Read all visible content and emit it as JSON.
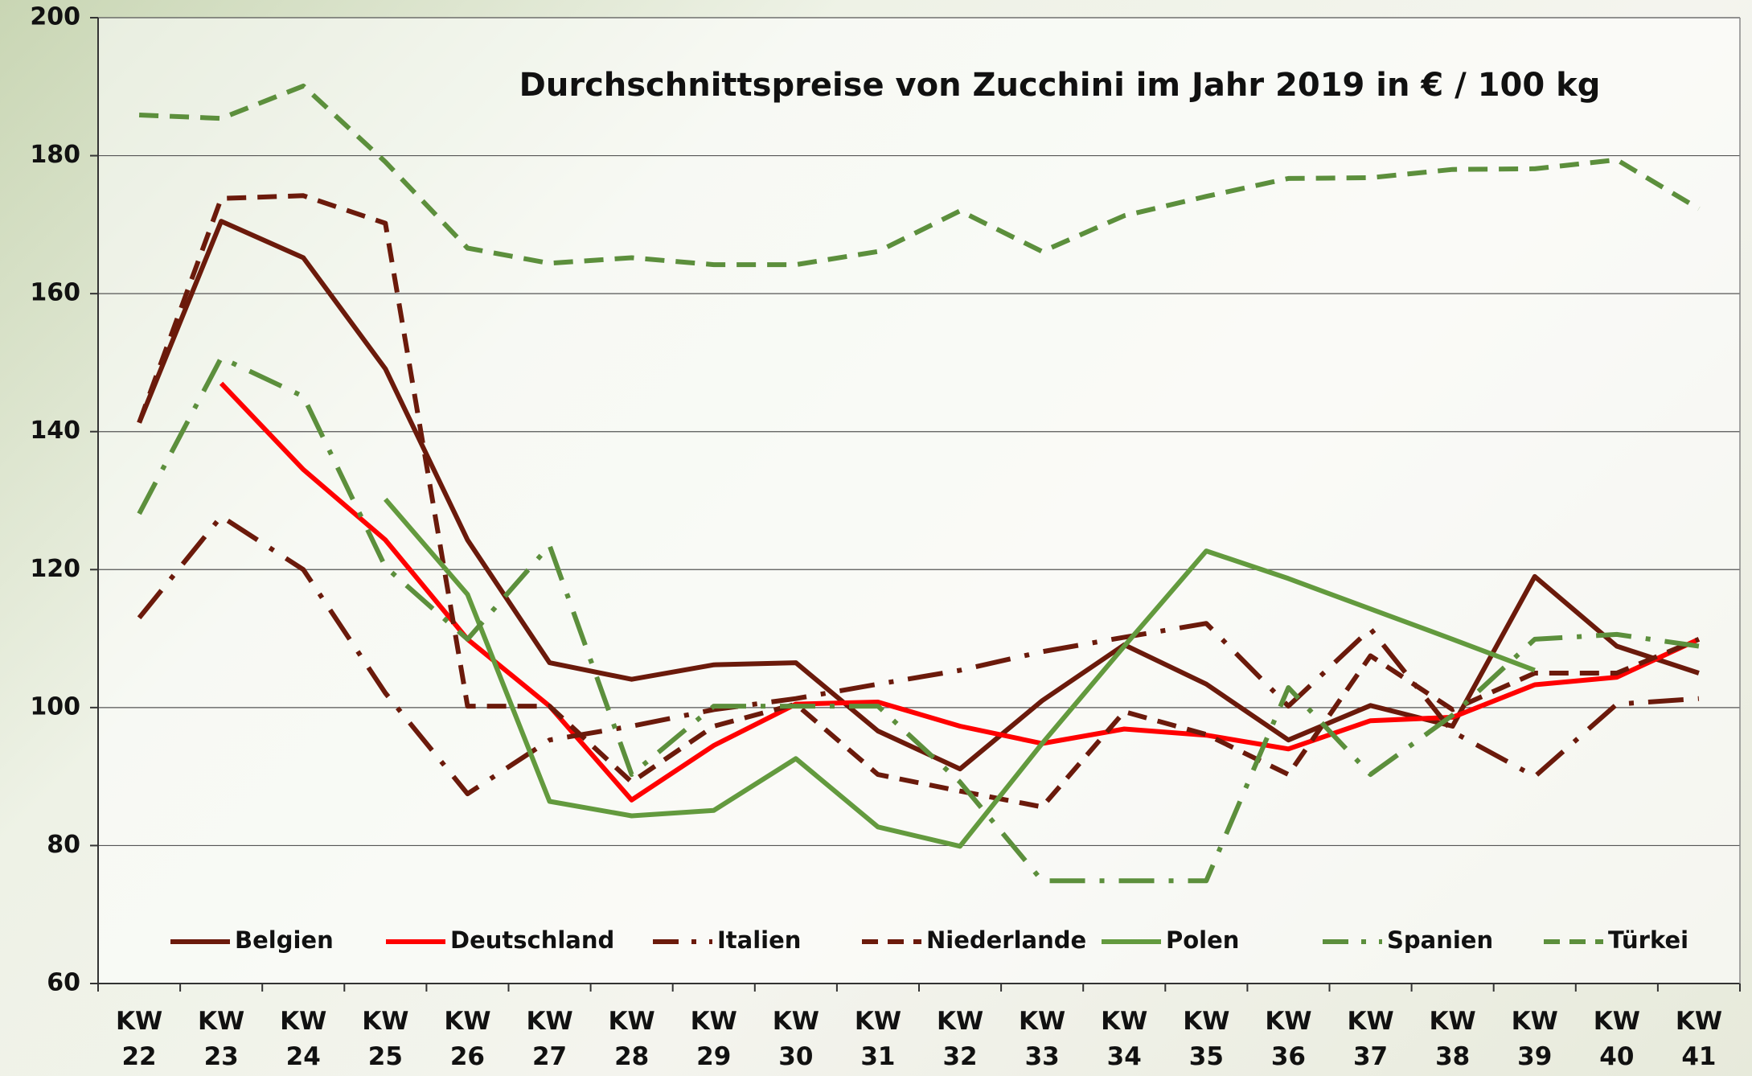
{
  "chart_data": {
    "type": "line",
    "title": "Durchschnittspreise von Zucchini im Jahr 2019 in € / 100 kg",
    "categories": [
      "KW 22",
      "KW 23",
      "KW 24",
      "KW 25",
      "KW 26",
      "KW 27",
      "KW 28",
      "KW 29",
      "KW 30",
      "KW 31",
      "KW 32",
      "KW 33",
      "KW 34",
      "KW 35",
      "KW 36",
      "KW 37",
      "KW 38",
      "KW 39",
      "KW 40",
      "KW 41"
    ],
    "ylim": [
      60,
      200
    ],
    "yticks": [
      60,
      80,
      100,
      120,
      140,
      160,
      180,
      200
    ],
    "grid": true,
    "series": [
      {
        "name": "Belgien",
        "color": "#6b1a0b",
        "dash": "solid",
        "values": [
          141.3,
          170.5,
          165.2,
          149.1,
          124.3,
          106.5,
          104.1,
          106.2,
          106.5,
          96.6,
          91.1,
          101,
          109.1,
          103.4,
          95.3,
          100.3,
          97.3,
          119,
          108.9,
          105
        ]
      },
      {
        "name": "Deutschland",
        "color": "#ff0000",
        "dash": "solid",
        "values": [
          null,
          147,
          134.5,
          124.3,
          109.9,
          100.2,
          86.6,
          94.5,
          100.5,
          100.8,
          97.3,
          94.8,
          96.9,
          96,
          94,
          98.1,
          98.6,
          103.3,
          104.4,
          109.9
        ]
      },
      {
        "name": "Italien",
        "color": "#6b1a0b",
        "dash": "dashdot",
        "values": [
          113,
          127.7,
          120,
          102.1,
          87.5,
          95.3,
          97.3,
          99.7,
          101.3,
          103.4,
          105.4,
          108.1,
          110.2,
          112.2,
          100.2,
          111.4,
          96.5,
          90,
          100.5,
          101.3
        ]
      },
      {
        "name": "Niederlande",
        "color": "#6b1a0b",
        "dash": "dash",
        "values": [
          141.3,
          173.8,
          174.2,
          170.2,
          100.2,
          100.2,
          89.2,
          97.3,
          100.5,
          90.3,
          87.9,
          85.6,
          99.4,
          96.1,
          90.3,
          107.5,
          99.7,
          105,
          105,
          109.9
        ]
      },
      {
        "name": "Polen",
        "color": "#639a3e",
        "dash": "solid",
        "values": [
          null,
          null,
          null,
          130.2,
          116.4,
          86.4,
          84.3,
          85.1,
          92.6,
          82.7,
          79.9,
          94.8,
          108.9,
          122.7,
          118.7,
          114.3,
          109.9,
          105.4,
          null,
          null
        ]
      },
      {
        "name": "Spanien",
        "color": "#5c8f3c",
        "dash": "dashdot",
        "values": [
          128.1,
          150.7,
          145.1,
          120.4,
          109.9,
          123.5,
          90.3,
          100.2,
          100.2,
          100.2,
          89.2,
          74.9,
          74.9,
          74.9,
          102.9,
          90.3,
          98.9,
          109.9,
          110.6,
          108.9
        ]
      },
      {
        "name": "Türkei",
        "color": "#5c8f3c",
        "dash": "dash",
        "values": [
          185.9,
          185.4,
          190.1,
          179.1,
          166.6,
          164.4,
          165.2,
          164.2,
          164.2,
          166.1,
          172,
          166.1,
          171.3,
          174.1,
          176.7,
          176.8,
          178,
          178.1,
          179.4,
          172.3
        ]
      }
    ]
  }
}
